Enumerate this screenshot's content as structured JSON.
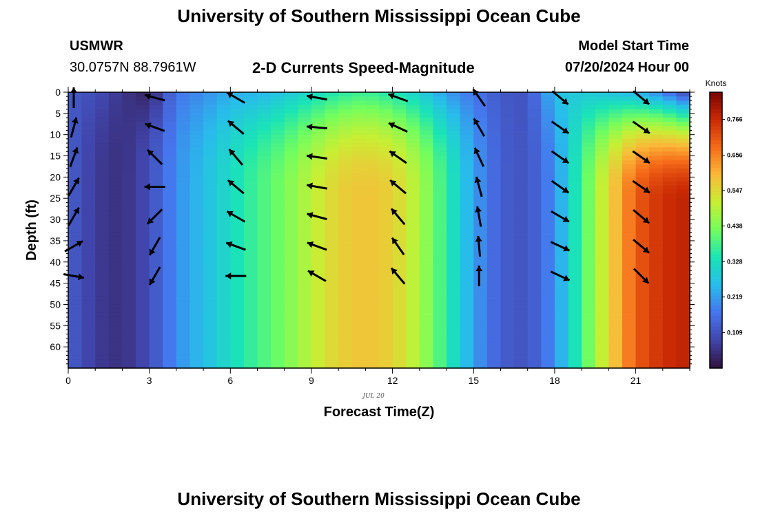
{
  "header": {
    "title": "University of Southern Mississippi Ocean Cube",
    "station": "USMWR",
    "coordinates": "30.0757N  88.7961W",
    "subtitle": "2-D Currents Speed-Magnitude",
    "start_label": "Model Start Time",
    "start_value": "07/20/2024 Hour 00",
    "footer_title": "University of Southern Mississippi Ocean Cube"
  },
  "chart_data": {
    "type": "heatmap",
    "title": "2-D Currents Speed-Magnitude",
    "xlabel": "Forecast Time(Z)",
    "ylabel": "Depth (ft)",
    "date_label": "JUL 20",
    "x_ticks": [
      0,
      3,
      6,
      9,
      12,
      15,
      18,
      21
    ],
    "y_ticks": [
      0,
      5,
      10,
      15,
      20,
      25,
      30,
      35,
      40,
      45,
      50,
      55,
      60
    ],
    "xlim": [
      0,
      23
    ],
    "ylim": [
      0,
      65
    ],
    "y_inverted": true,
    "colorbar": {
      "label": "Knots",
      "ticks": [
        "0.766",
        "0.656",
        "0.547",
        "0.438",
        "0.328",
        "0.219",
        "0.109"
      ],
      "tick_values": [
        0.766,
        0.656,
        0.547,
        0.438,
        0.328,
        0.219,
        0.109
      ],
      "range": [
        0.0,
        0.85
      ],
      "colormap": "turbo"
    },
    "hours": [
      0,
      1,
      2,
      3,
      4,
      5,
      6,
      7,
      8,
      9,
      10,
      11,
      12,
      13,
      14,
      15,
      16,
      17,
      18,
      19,
      20,
      21,
      22,
      23
    ],
    "speed_profile": [
      0.13,
      0.07,
      0.05,
      0.1,
      0.2,
      0.26,
      0.32,
      0.38,
      0.43,
      0.5,
      0.56,
      0.58,
      0.56,
      0.48,
      0.36,
      0.22,
      0.13,
      0.11,
      0.2,
      0.38,
      0.55,
      0.7,
      0.76,
      0.78
    ],
    "speed_surface": [
      0.12,
      0.1,
      0.06,
      0.03,
      0.17,
      0.2,
      0.24,
      0.25,
      0.28,
      0.32,
      0.36,
      0.38,
      0.35,
      0.3,
      0.22,
      0.17,
      0.12,
      0.11,
      0.26,
      0.29,
      0.28,
      0.26,
      0.2,
      0.1
    ],
    "arrow_depths": [
      0,
      7,
      14,
      21,
      28,
      35,
      42
    ],
    "arrows": [
      {
        "t": 0.0,
        "angles": [
          90,
          75,
          70,
          60,
          60,
          30,
          -10
        ]
      },
      {
        "t": 3.0,
        "angles": [
          165,
          160,
          135,
          180,
          225,
          240,
          240
        ]
      },
      {
        "t": 6.0,
        "angles": [
          150,
          140,
          130,
          140,
          150,
          160,
          180
        ]
      },
      {
        "t": 9.0,
        "angles": [
          170,
          175,
          172,
          170,
          165,
          160,
          150
        ]
      },
      {
        "t": 12.0,
        "angles": [
          160,
          155,
          145,
          140,
          130,
          125,
          130
        ]
      },
      {
        "t": 15.0,
        "angles": [
          125,
          120,
          115,
          105,
          100,
          95,
          90
        ]
      },
      {
        "t": 18.0,
        "angles": [
          -40,
          -35,
          -35,
          -35,
          -30,
          -25,
          -25
        ]
      },
      {
        "t": 21.0,
        "angles": [
          -40,
          -35,
          -35,
          -35,
          -40,
          -40,
          -45
        ]
      }
    ]
  }
}
